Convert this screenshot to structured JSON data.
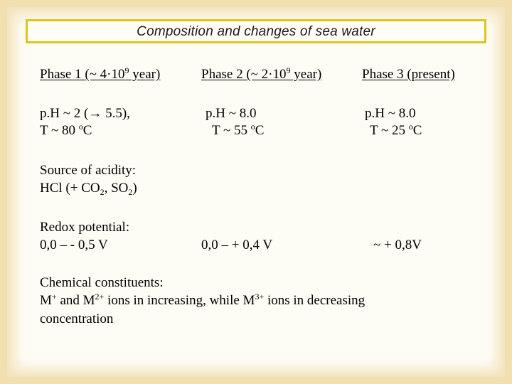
{
  "title": "Composition and changes of sea water",
  "columns": {
    "phase1": {
      "header_pre": "Phase 1 (~ 4·10",
      "header_exp": "9",
      "header_post": " year)"
    },
    "phase2": {
      "header_pre": "Phase 2 (~ 2·10",
      "header_exp": "9",
      "header_post": " year)"
    },
    "phase3": {
      "header": "Phase 3 (present)"
    }
  },
  "ph_row": {
    "phase1": {
      "ph": "p.H ~ 2 (→ 5.5),",
      "temp_pre": "T  ~ 80 ",
      "temp_deg": "o",
      "temp_unit": "C"
    },
    "phase2": {
      "ph": "p.H ~ 8.0",
      "temp_pre": "T ~ 55 ",
      "temp_deg": "o",
      "temp_unit": "C"
    },
    "phase3": {
      "ph": "p.H ~ 8.0",
      "temp_pre": "T ~ 25 ",
      "temp_deg": "o",
      "temp_unit": "C"
    }
  },
  "acidity": {
    "label": "Source of acidity:",
    "value_a": "HCl (+ CO",
    "sub_a": "2",
    "value_b": ", SO",
    "sub_b": "2",
    "value_c": ")"
  },
  "redox": {
    "label": "Redox potential:",
    "phase1": "0,0 – - 0,5 V",
    "phase2": "0,0 – + 0,4 V",
    "phase3": "~ + 0,8V"
  },
  "constituents": {
    "label": "Chemical constituents:",
    "m": "M",
    "sup_plus": "+",
    "and_m": " and M",
    "sup_2plus": "2+",
    "middle": " ions in increasing, while M",
    "sup_3plus": "3+",
    "end": " ions in decreasing",
    "line3": "concentration"
  }
}
